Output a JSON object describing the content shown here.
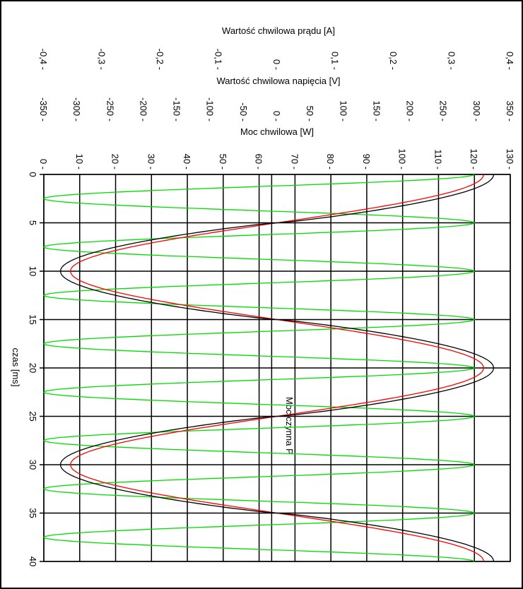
{
  "chart_data": {
    "type": "line",
    "orientation": "rotated-90-clockwise",
    "xlabel": "czas [ms]",
    "xlim": [
      0,
      40
    ],
    "x_ticks": [
      "0",
      "5",
      "10",
      "15",
      "20",
      "25",
      "30",
      "35",
      "40"
    ],
    "axes": {
      "current": {
        "label": "Wartość chwilowa prądu [A]",
        "lim": [
          -0.4,
          0.4
        ],
        "ticks": [
          "-0,4",
          "-0,3",
          "-0,2",
          "-0,1",
          "0",
          "0,1",
          "0,2",
          "0,3",
          "0,4"
        ]
      },
      "voltage": {
        "label": "Wartość chwilowa napięcia [V]",
        "lim": [
          -350,
          350
        ],
        "ticks": [
          "-350",
          "-300",
          "-250",
          "-200",
          "-150",
          "-100",
          "-50",
          "0",
          "50",
          "100",
          "150",
          "200",
          "250",
          "300",
          "350"
        ]
      },
      "power": {
        "label": "Moc chwilowa [W]",
        "lim": [
          0,
          130
        ],
        "ticks": [
          "0",
          "10",
          "20",
          "30",
          "40",
          "50",
          "60",
          "70",
          "80",
          "90",
          "100",
          "110",
          "120",
          "130"
        ]
      }
    },
    "active_power_label": "Moc czynna P",
    "active_power_value": 63.5,
    "grid": true,
    "series": [
      {
        "color": "#000000",
        "axis": "voltage",
        "amplitude": 325,
        "period_ms": 20,
        "phase_deg": 90,
        "shape": "sine-slightly-clipped"
      },
      {
        "color": "#ff0000",
        "axis": "voltage",
        "amplitude": 310,
        "period_ms": 20,
        "phase_deg": 90,
        "shape": "sine"
      },
      {
        "color": "#00dd00",
        "axis": "power",
        "min": 0,
        "max": 120,
        "period_ms": 10,
        "phase_deg": 90,
        "shape": "cos-squared"
      }
    ]
  }
}
